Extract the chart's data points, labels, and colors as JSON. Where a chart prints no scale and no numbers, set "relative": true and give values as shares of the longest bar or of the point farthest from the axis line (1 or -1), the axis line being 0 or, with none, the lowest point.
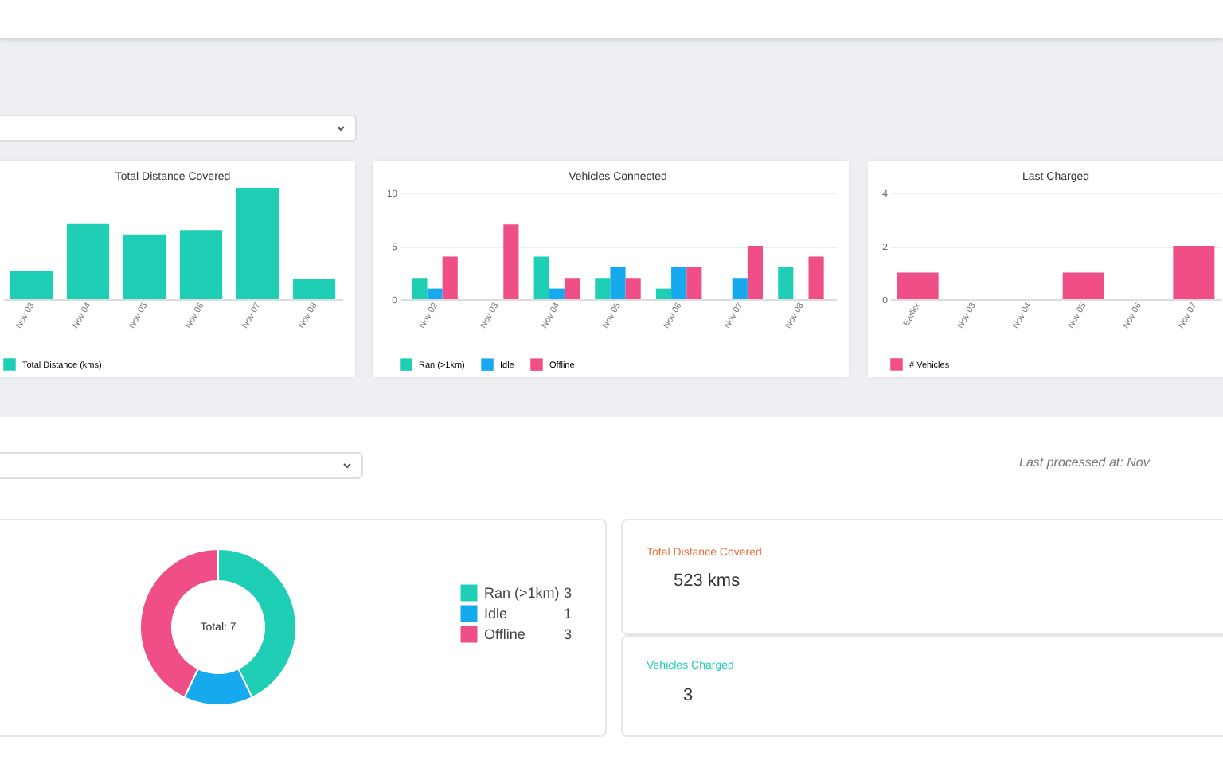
{
  "chart_data": [
    {
      "type": "bar",
      "title": "Total Distance Covered",
      "categories": [
        "Nov 03",
        "Nov 04",
        "Nov 05",
        "Nov 06",
        "Nov 07",
        "Nov 08"
      ],
      "relative": true,
      "legend": "bottom",
      "series": [
        {
          "name": "Total Distance (kms)",
          "color": "#1fcfb5",
          "values": [
            0.25,
            0.68,
            0.58,
            0.62,
            1,
            0.18
          ]
        }
      ]
    },
    {
      "type": "bar",
      "title": "Vehicles Connected",
      "categories": [
        "Nov 02",
        "Nov 03",
        "Nov 04",
        "Nov 05",
        "Nov 06",
        "Nov 07",
        "Nov 08"
      ],
      "ylim": [
        0,
        10
      ],
      "yticks": [
        0,
        5,
        10
      ],
      "grid": "y",
      "legend": "bottom",
      "series": [
        {
          "name": "Ran (>1km)",
          "color": "#1fcfb5",
          "values": [
            2,
            0,
            4,
            2,
            1,
            0,
            3
          ]
        },
        {
          "name": "Idle",
          "color": "#17a9ee",
          "values": [
            1,
            0,
            1,
            3,
            3,
            2,
            0
          ]
        },
        {
          "name": "Offline",
          "color": "#ef4f86",
          "values": [
            4,
            7,
            2,
            2,
            3,
            5,
            4
          ]
        }
      ]
    },
    {
      "type": "bar",
      "title": "Last Charged",
      "categories": [
        "Earlier",
        "Nov 03",
        "Nov 04",
        "Nov 05",
        "Nov 06",
        "Nov 07"
      ],
      "ylim": [
        0,
        4
      ],
      "yticks": [
        0,
        2,
        4
      ],
      "grid": "y",
      "legend": "bottom",
      "series": [
        {
          "name": "# Vehicles",
          "color": "#ef4f86",
          "values": [
            1,
            0,
            0,
            1,
            0,
            2
          ]
        }
      ]
    },
    {
      "type": "donut",
      "categories": [
        "Ran (>1km)",
        "Idle",
        "Offline"
      ],
      "values": [
        3,
        1,
        3
      ],
      "colors": [
        "#1fcfb5",
        "#17a9ee",
        "#ef4f86"
      ],
      "legend": "right",
      "data_labels": true,
      "annotations": [
        "Total: 7"
      ]
    },
    {
      "type": "other",
      "annotations": [
        "Last processed at: Nov",
        "Total Distance Covered",
        "523 kms",
        "Vehicles Charged",
        "3"
      ]
    }
  ]
}
